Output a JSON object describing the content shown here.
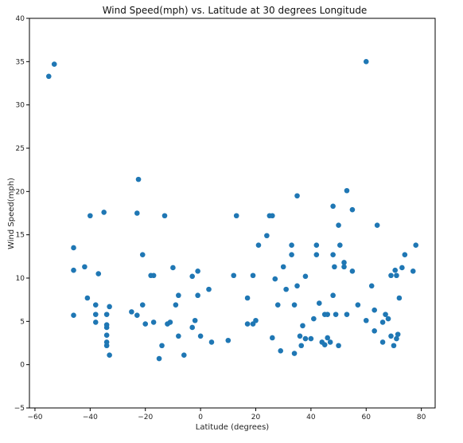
{
  "chart_data": {
    "type": "scatter",
    "title": "Wind Speed(mph) vs. Latitude at 30 degrees Longitude",
    "xlabel": "Latitude (degrees)",
    "ylabel": "Wind Speed(mph)",
    "xlim": [
      -62,
      85
    ],
    "ylim": [
      -5,
      40
    ],
    "xticks": [
      -60,
      -40,
      -20,
      0,
      20,
      40,
      60,
      80
    ],
    "xtick_labels": [
      "−60",
      "−40",
      "−20",
      "0",
      "20",
      "40",
      "60",
      "80"
    ],
    "yticks": [
      -5,
      0,
      5,
      10,
      15,
      20,
      25,
      30,
      35,
      40
    ],
    "ytick_labels": [
      "−5",
      "0",
      "5",
      "10",
      "15",
      "20",
      "25",
      "30",
      "35",
      "40"
    ],
    "grid": false,
    "marker_color": "#1f77b4",
    "points": [
      [
        -55,
        33.3
      ],
      [
        -53,
        34.7
      ],
      [
        -46,
        13.5
      ],
      [
        -46,
        10.9
      ],
      [
        -46,
        5.7
      ],
      [
        -42,
        11.3
      ],
      [
        -41,
        7.7
      ],
      [
        -40,
        17.2
      ],
      [
        -38,
        6.9
      ],
      [
        -38,
        5.8
      ],
      [
        -38,
        4.9
      ],
      [
        -37,
        10.5
      ],
      [
        -35,
        17.6
      ],
      [
        -34,
        2.2
      ],
      [
        -34,
        2.6
      ],
      [
        -34,
        3.4
      ],
      [
        -34,
        4.3
      ],
      [
        -34,
        4.6
      ],
      [
        -34,
        5.8
      ],
      [
        -33,
        6.7
      ],
      [
        -33,
        1.1
      ],
      [
        -25,
        6.1
      ],
      [
        -23,
        17.5
      ],
      [
        -23,
        5.7
      ],
      [
        -22.5,
        21.4
      ],
      [
        -21,
        6.9
      ],
      [
        -21,
        12.7
      ],
      [
        -20,
        4.7
      ],
      [
        -18,
        10.3
      ],
      [
        -17,
        10.3
      ],
      [
        -17,
        4.9
      ],
      [
        -14,
        2.2
      ],
      [
        -13,
        17.2
      ],
      [
        -15,
        0.7
      ],
      [
        -12,
        4.7
      ],
      [
        -11,
        4.9
      ],
      [
        -10,
        11.2
      ],
      [
        -9,
        6.9
      ],
      [
        -8,
        8.0
      ],
      [
        -8,
        3.3
      ],
      [
        -6,
        1.1
      ],
      [
        -3,
        10.2
      ],
      [
        -3,
        4.3
      ],
      [
        -2,
        5.1
      ],
      [
        -1,
        8.0
      ],
      [
        -1,
        10.8
      ],
      [
        0,
        3.3
      ],
      [
        3,
        8.7
      ],
      [
        4,
        2.6
      ],
      [
        10,
        2.8
      ],
      [
        12,
        10.3
      ],
      [
        13,
        17.2
      ],
      [
        17,
        4.7
      ],
      [
        17,
        7.7
      ],
      [
        19,
        10.3
      ],
      [
        19,
        4.7
      ],
      [
        20,
        5.1
      ],
      [
        21,
        13.8
      ],
      [
        24,
        14.9
      ],
      [
        25,
        17.2
      ],
      [
        26,
        17.2
      ],
      [
        26,
        3.1
      ],
      [
        27,
        9.9
      ],
      [
        28,
        6.9
      ],
      [
        29,
        1.6
      ],
      [
        30,
        11.3
      ],
      [
        31,
        8.7
      ],
      [
        33,
        12.7
      ],
      [
        33,
        13.8
      ],
      [
        34,
        6.9
      ],
      [
        34,
        1.3
      ],
      [
        35,
        19.5
      ],
      [
        35,
        9.1
      ],
      [
        36,
        3.3
      ],
      [
        36.5,
        2.2
      ],
      [
        37,
        4.5
      ],
      [
        38,
        3.0
      ],
      [
        38,
        10.2
      ],
      [
        40,
        3.0
      ],
      [
        41,
        5.3
      ],
      [
        42,
        12.7
      ],
      [
        42,
        13.8
      ],
      [
        43,
        7.1
      ],
      [
        44,
        2.6
      ],
      [
        45,
        5.8
      ],
      [
        45,
        2.3
      ],
      [
        46,
        5.8
      ],
      [
        46,
        3.1
      ],
      [
        47,
        2.6
      ],
      [
        48,
        8.0
      ],
      [
        48,
        18.3
      ],
      [
        48,
        12.7
      ],
      [
        49,
        5.8
      ],
      [
        48.5,
        11.3
      ],
      [
        50,
        2.2
      ],
      [
        50,
        16.1
      ],
      [
        50.5,
        13.8
      ],
      [
        52,
        11.8
      ],
      [
        52,
        11.3
      ],
      [
        53,
        20.1
      ],
      [
        53,
        5.8
      ],
      [
        55,
        10.8
      ],
      [
        55,
        17.9
      ],
      [
        57,
        6.9
      ],
      [
        60,
        35.0
      ],
      [
        60,
        5.1
      ],
      [
        62,
        9.1
      ],
      [
        63,
        3.9
      ],
      [
        63,
        6.3
      ],
      [
        64,
        16.1
      ],
      [
        66,
        2.6
      ],
      [
        66,
        4.9
      ],
      [
        67,
        5.8
      ],
      [
        68,
        5.3
      ],
      [
        69,
        3.3
      ],
      [
        69,
        10.3
      ],
      [
        70,
        2.2
      ],
      [
        70.5,
        10.9
      ],
      [
        71,
        3.0
      ],
      [
        71,
        10.3
      ],
      [
        71.5,
        3.5
      ],
      [
        72,
        7.7
      ],
      [
        73,
        11.2
      ],
      [
        74,
        12.7
      ],
      [
        77,
        10.8
      ],
      [
        78,
        13.8
      ]
    ]
  }
}
